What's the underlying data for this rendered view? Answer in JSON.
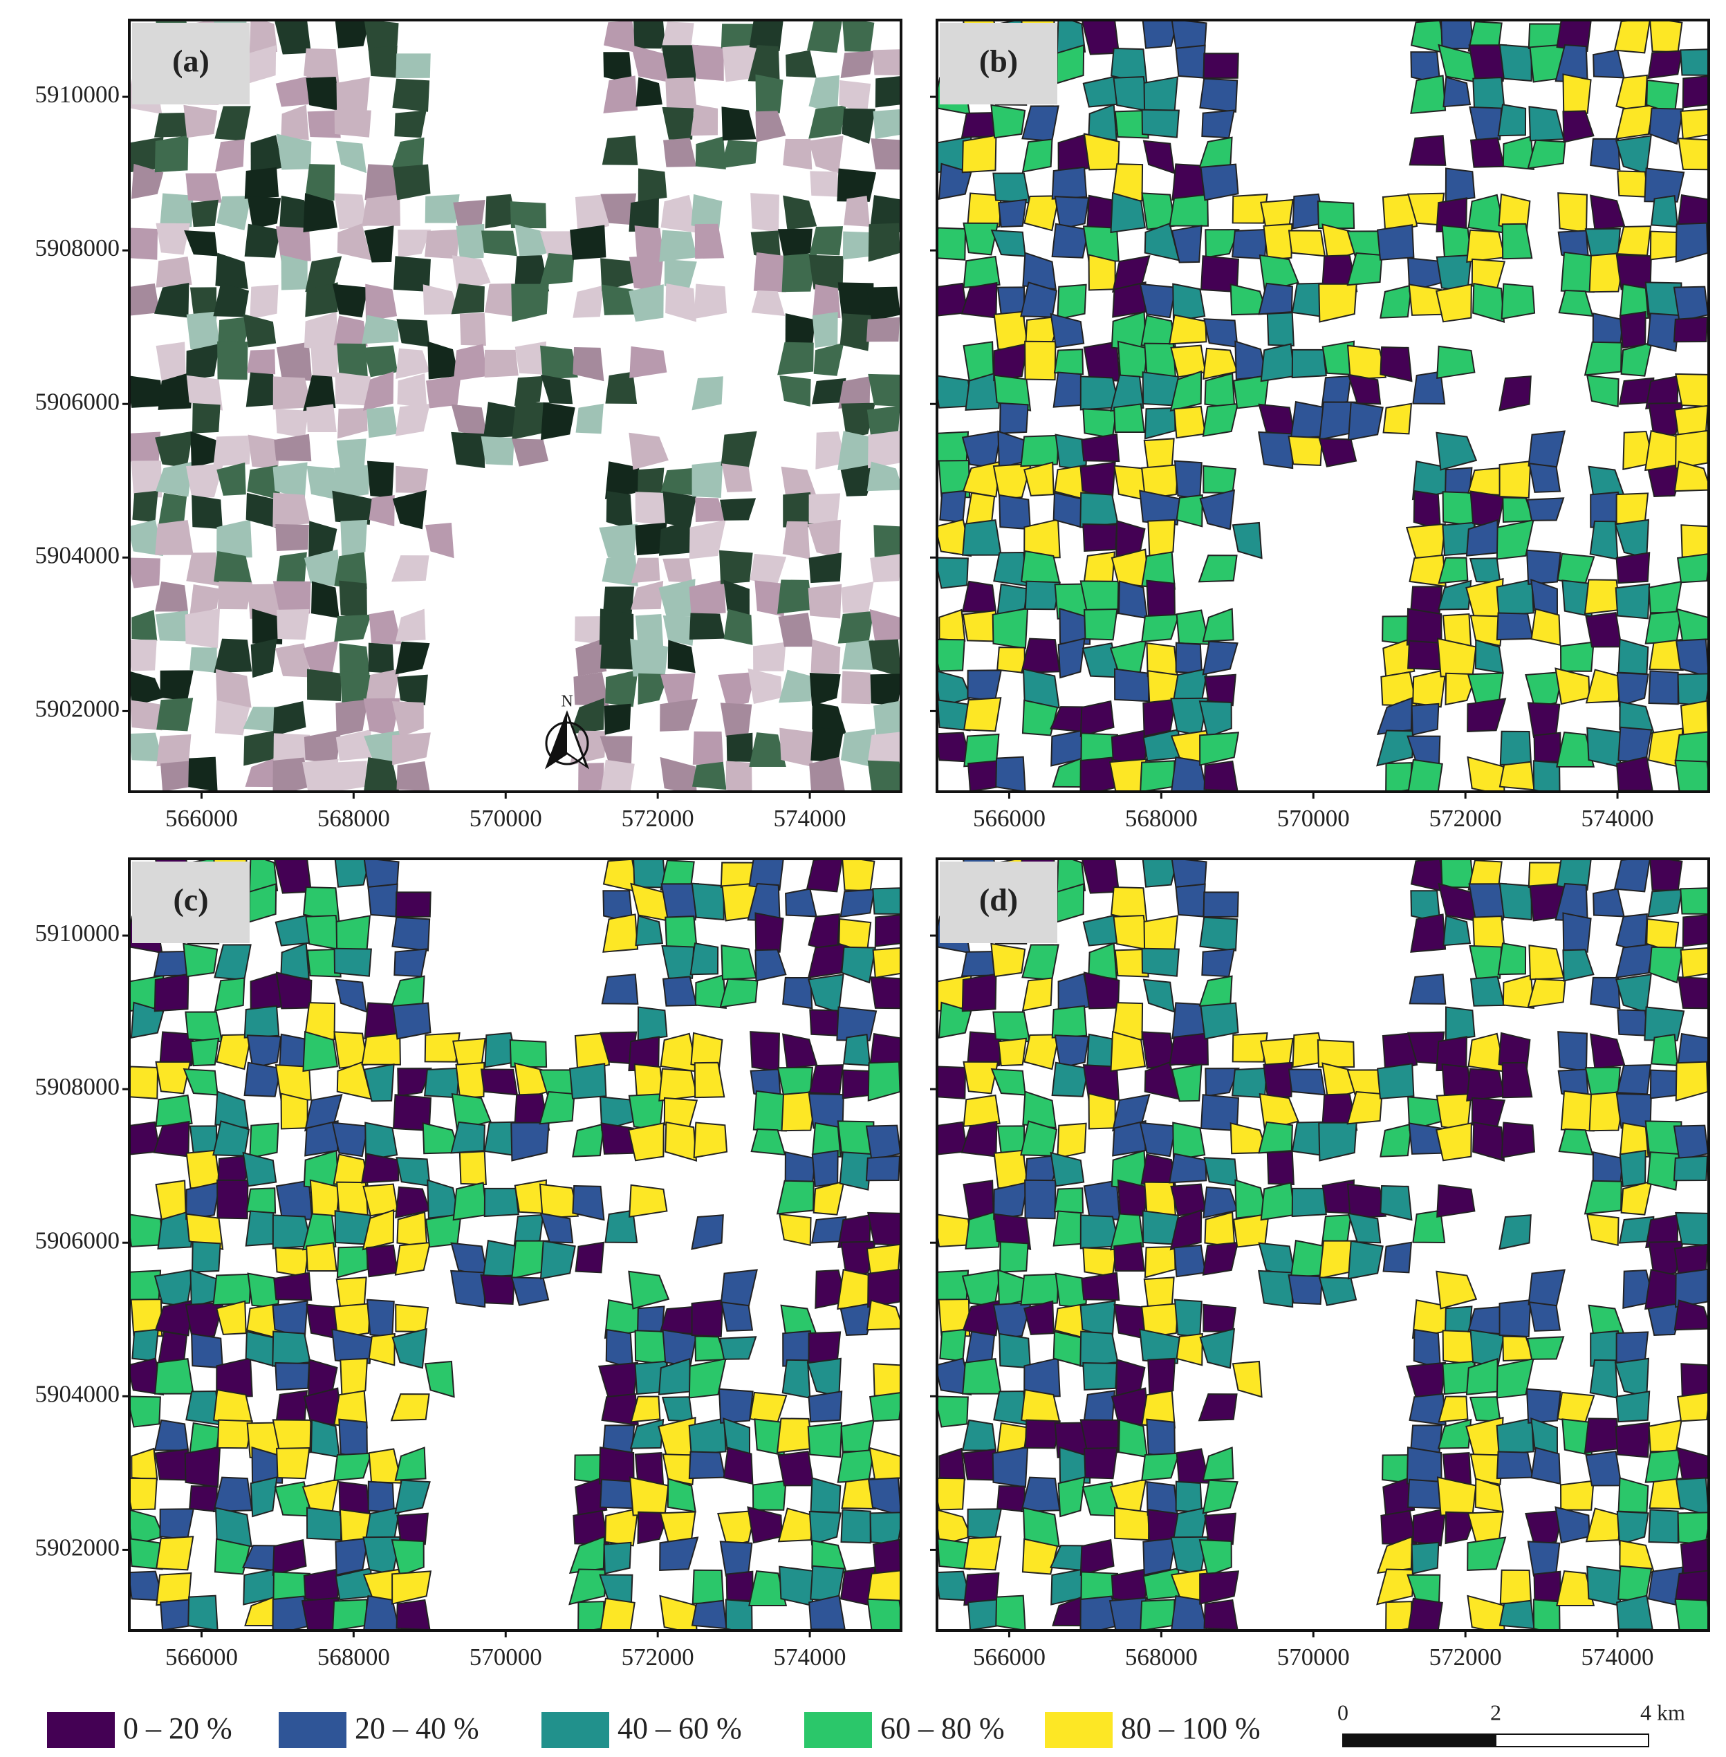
{
  "panels": [
    {
      "label": "(a)"
    },
    {
      "label": "(b)"
    },
    {
      "label": "(c)"
    },
    {
      "label": "(d)"
    }
  ],
  "x_axis": {
    "lim": [
      565050,
      575200
    ],
    "ticks": [
      566000,
      568000,
      570000,
      572000,
      574000
    ]
  },
  "y_axis": {
    "lim": [
      5900950,
      5911000
    ],
    "ticks": [
      5902000,
      5904000,
      5906000,
      5908000,
      5910000
    ]
  },
  "north_arrow": "N",
  "legend": [
    {
      "label": "0 – 20 %",
      "color": "#440154"
    },
    {
      "label": "20 – 40 %",
      "color": "#2f5597"
    },
    {
      "label": "40 – 60 %",
      "color": "#21918c"
    },
    {
      "label": "60 – 80 %",
      "color": "#2bc76a"
    },
    {
      "label": "80 – 100 %",
      "color": "#fde725"
    }
  ],
  "scale_bar": {
    "labels": [
      "0",
      "2",
      "4 km"
    ]
  }
}
